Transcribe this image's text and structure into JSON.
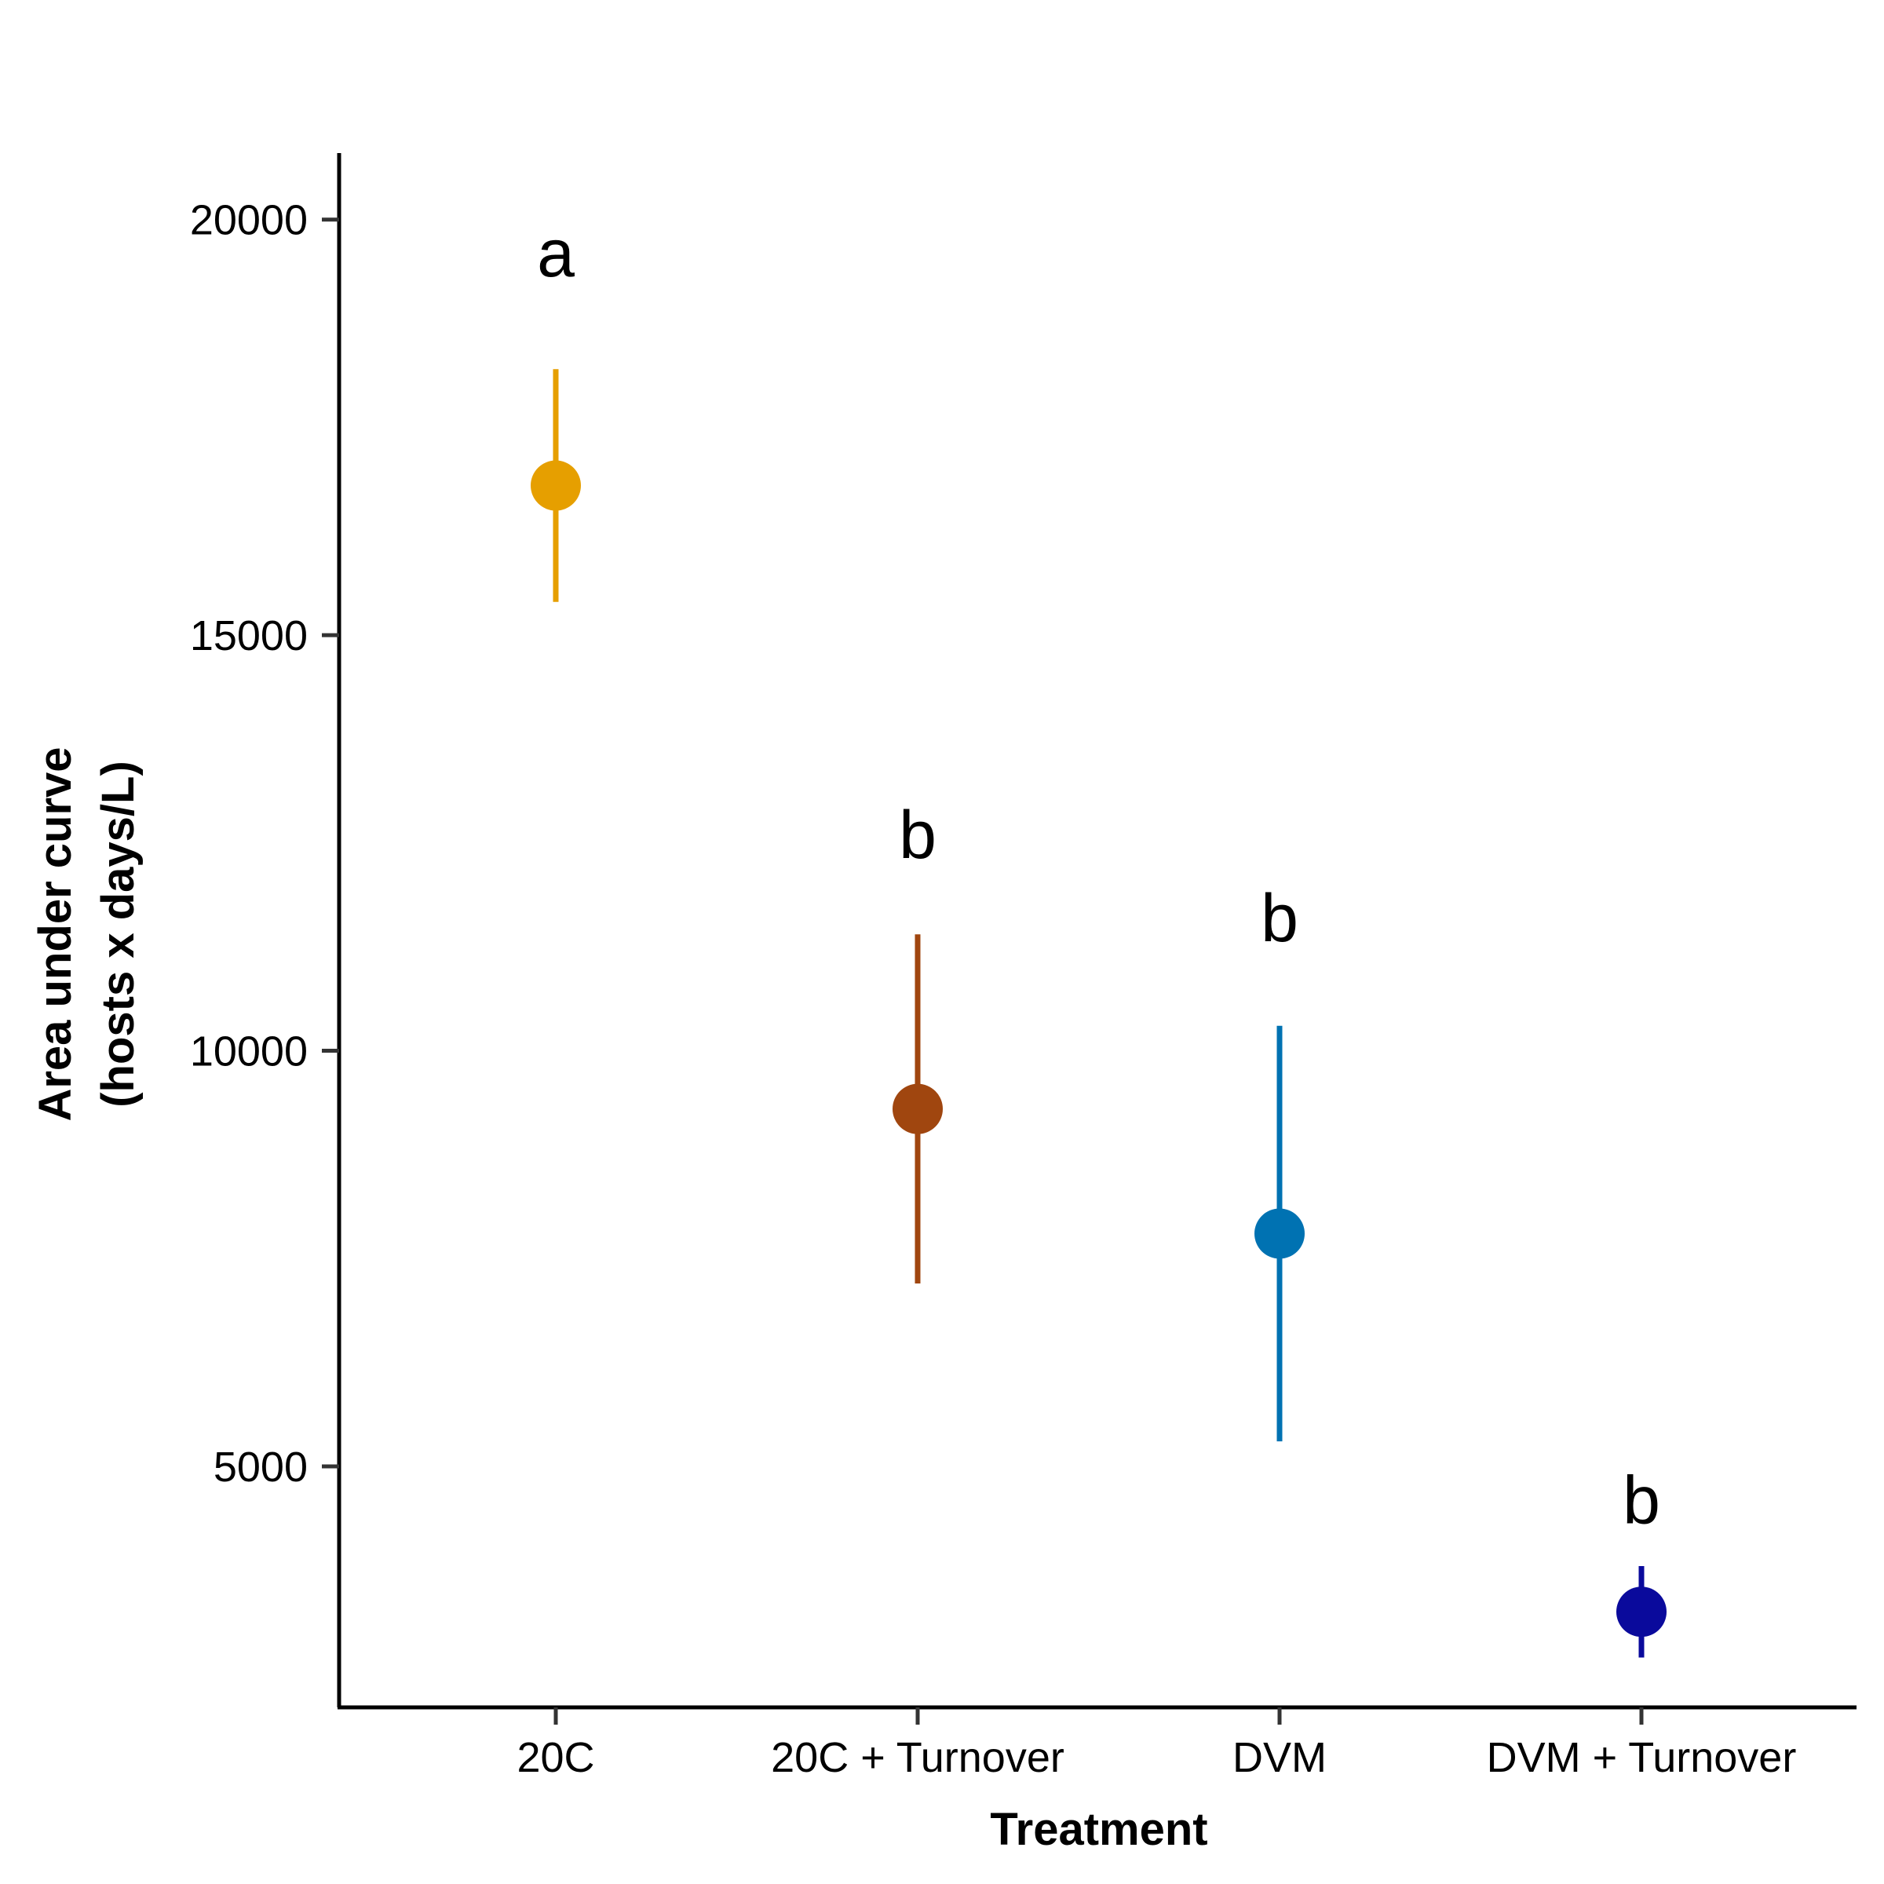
{
  "chart_data": {
    "type": "scatter",
    "title": "",
    "xlabel": "Treatment",
    "ylabel": [
      "Area under curve",
      "(hosts x days/L)"
    ],
    "ylim": [
      2100,
      20800
    ],
    "yticks": [
      5000,
      10000,
      15000,
      20000
    ],
    "grid": false,
    "legend": "none",
    "categories": [
      "20C",
      "20C + Turnover",
      "DVM",
      "DVM + Turnover"
    ],
    "points": [
      {
        "category": "20C",
        "mean": 16800,
        "lower": 15400,
        "upper": 18200,
        "letter": "a",
        "letter_y": 19600,
        "color": "#E69F00"
      },
      {
        "category": "20C + Turnover",
        "mean": 9300,
        "lower": 7200,
        "upper": 11400,
        "letter": "b",
        "letter_y": 12600,
        "color": "#A0460F"
      },
      {
        "category": "DVM",
        "mean": 7800,
        "lower": 5300,
        "upper": 10300,
        "letter": "b",
        "letter_y": 11600,
        "color": "#0072B2"
      },
      {
        "category": "DVM + Turnover",
        "mean": 3250,
        "lower": 2700,
        "upper": 3800,
        "letter": "b",
        "letter_y": 4600,
        "color": "#0A0A9C"
      }
    ]
  }
}
